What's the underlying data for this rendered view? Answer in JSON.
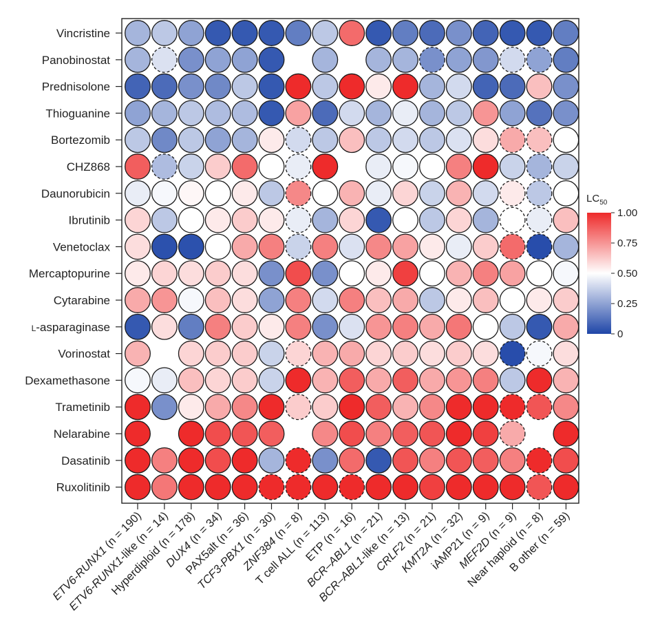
{
  "chart_data": {
    "type": "heatmap",
    "title": "",
    "legend": {
      "title": "LC",
      "title_subscript": "50",
      "tick_labels": [
        "1.00",
        "0.75",
        "0.50",
        "0.25",
        "0"
      ],
      "tick_values": [
        1.0,
        0.75,
        0.5,
        0.25,
        0
      ],
      "colors": {
        "low": "#1f46a8",
        "mid": "#ffffff",
        "high": "#ee2b2b"
      }
    },
    "drugs": [
      "Vincristine",
      "Panobinostat",
      "Prednisolone",
      "Thioguanine",
      "Bortezomib",
      "CHZ868",
      "Daunorubicin",
      "Ibrutinib",
      "Venetoclax",
      "Mercaptopurine",
      "Cytarabine",
      "L-asparaginase",
      "Vorinostat",
      "Dexamethasone",
      "Trametinib",
      "Nelarabine",
      "Dasatinib",
      "Ruxolitinib"
    ],
    "drug_labels": [
      {
        "prefix": "",
        "name": "Vincristine"
      },
      {
        "prefix": "",
        "name": "Panobinostat"
      },
      {
        "prefix": "",
        "name": "Prednisolone"
      },
      {
        "prefix": "",
        "name": "Thioguanine"
      },
      {
        "prefix": "",
        "name": "Bortezomib"
      },
      {
        "prefix": "",
        "name": "CHZ868"
      },
      {
        "prefix": "",
        "name": "Daunorubicin"
      },
      {
        "prefix": "",
        "name": "Ibrutinib"
      },
      {
        "prefix": "",
        "name": "Venetoclax"
      },
      {
        "prefix": "",
        "name": "Mercaptopurine"
      },
      {
        "prefix": "",
        "name": "Cytarabine"
      },
      {
        "prefix": "L",
        "name": "-asparaginase"
      },
      {
        "prefix": "",
        "name": "Vorinostat"
      },
      {
        "prefix": "",
        "name": "Dexamethasone"
      },
      {
        "prefix": "",
        "name": "Trametinib"
      },
      {
        "prefix": "",
        "name": "Nelarabine"
      },
      {
        "prefix": "",
        "name": "Dasatinib"
      },
      {
        "prefix": "",
        "name": "Ruxolitinib"
      }
    ],
    "subtypes": [
      {
        "name": "ETV6-RUNX1",
        "italic": true,
        "suffix": " (n = 190)"
      },
      {
        "name": "ETV6-RUNX1",
        "italic": true,
        "suffix": "-like (n = 14)"
      },
      {
        "name": "Hyperdiploid",
        "italic": false,
        "suffix": " (n = 178)"
      },
      {
        "name": "DUX4",
        "italic": true,
        "suffix": " (n = 34)"
      },
      {
        "name": "PAX5alt",
        "italic": false,
        "suffix": " (n = 36)"
      },
      {
        "name": "TCF3-PBX1",
        "italic": true,
        "suffix": " (n = 30)"
      },
      {
        "name": "ZNF384",
        "italic": true,
        "suffix": " (n = 8)"
      },
      {
        "name": "T cell ALL",
        "italic": false,
        "suffix": " (n = 113)"
      },
      {
        "name": "ETP",
        "italic": false,
        "suffix": " (n = 16)"
      },
      {
        "name": "BCR–ABL1",
        "italic": true,
        "suffix": " (n = 21)"
      },
      {
        "name": "BCR–ABL1",
        "italic": true,
        "suffix": "-like (n = 13)"
      },
      {
        "name": "CRLF2",
        "italic": true,
        "suffix": " (n = 21)"
      },
      {
        "name": "KMT2A",
        "italic": true,
        "suffix": " (n = 32)"
      },
      {
        "name": "iAMP21",
        "italic": false,
        "suffix": " (n = 9)"
      },
      {
        "name": "MEF2D",
        "italic": true,
        "suffix": " (n = 9)"
      },
      {
        "name": "Near haploid",
        "italic": false,
        "suffix": " (n = 8)"
      },
      {
        "name": "B other",
        "italic": false,
        "suffix": " (n = 59)"
      }
    ],
    "values": [
      [
        0.3,
        0.35,
        0.25,
        0.05,
        0.05,
        0.05,
        0.15,
        0.35,
        0.85,
        0.05,
        0.15,
        0.1,
        0.2,
        0.08,
        0.05,
        0.05,
        0.15
      ],
      [
        0.3,
        0.42,
        0.2,
        0.25,
        0.25,
        0.05,
        null,
        0.3,
        null,
        0.3,
        0.3,
        0.2,
        0.25,
        0.22,
        0.4,
        0.25,
        0.15
      ],
      [
        0.08,
        0.1,
        0.2,
        0.18,
        0.35,
        0.05,
        1.0,
        0.35,
        1.0,
        0.55,
        1.0,
        0.3,
        0.4,
        0.08,
        0.1,
        0.65,
        0.2
      ],
      [
        0.25,
        0.3,
        0.35,
        0.32,
        0.32,
        0.05,
        0.72,
        0.1,
        0.4,
        0.3,
        0.45,
        0.3,
        0.35,
        0.75,
        0.25,
        0.12,
        0.2
      ],
      [
        0.35,
        0.18,
        0.35,
        0.25,
        0.3,
        0.55,
        0.4,
        0.35,
        0.65,
        0.35,
        0.4,
        0.35,
        0.42,
        0.58,
        0.7,
        0.65,
        0.5
      ],
      [
        0.88,
        0.32,
        0.38,
        0.62,
        0.85,
        0.5,
        0.45,
        1.0,
        null,
        0.45,
        0.48,
        0.5,
        0.8,
        1.0,
        0.38,
        0.3,
        0.38
      ],
      [
        0.45,
        0.48,
        0.52,
        0.5,
        0.55,
        0.35,
        0.78,
        0.5,
        0.68,
        0.45,
        0.6,
        0.38,
        0.68,
        0.4,
        0.55,
        0.35,
        0.5
      ],
      [
        0.6,
        0.35,
        0.5,
        0.55,
        0.62,
        0.55,
        0.45,
        0.3,
        0.6,
        0.05,
        0.5,
        0.35,
        0.6,
        0.3,
        0.5,
        0.45,
        0.65
      ],
      [
        0.58,
        0.03,
        0.03,
        0.5,
        0.7,
        0.8,
        0.38,
        0.8,
        0.42,
        0.78,
        0.72,
        0.55,
        0.45,
        0.62,
        0.85,
        0.02,
        0.3
      ],
      [
        0.55,
        0.6,
        0.58,
        0.62,
        0.58,
        0.2,
        0.92,
        0.2,
        0.5,
        0.55,
        0.95,
        0.5,
        0.68,
        0.8,
        0.72,
        0.5,
        0.48
      ],
      [
        0.7,
        0.75,
        0.48,
        0.65,
        0.58,
        0.25,
        0.8,
        0.4,
        0.8,
        0.65,
        0.7,
        0.35,
        0.55,
        0.65,
        0.5,
        0.55,
        0.62
      ],
      [
        0.05,
        0.58,
        0.15,
        0.8,
        0.62,
        0.55,
        0.8,
        0.2,
        0.42,
        0.75,
        0.8,
        0.7,
        0.82,
        0.5,
        0.35,
        0.05,
        0.7
      ],
      [
        0.68,
        null,
        0.6,
        0.62,
        0.62,
        0.38,
        0.6,
        0.68,
        0.7,
        0.6,
        0.62,
        0.58,
        0.62,
        0.58,
        0.02,
        0.48,
        0.58
      ],
      [
        0.48,
        0.45,
        0.65,
        0.6,
        0.62,
        0.38,
        1.0,
        0.68,
        0.88,
        0.7,
        0.88,
        0.7,
        0.75,
        0.8,
        0.35,
        1.0,
        0.68
      ],
      [
        1.0,
        0.2,
        0.55,
        0.7,
        0.78,
        1.0,
        0.62,
        0.62,
        1.0,
        0.88,
        0.68,
        0.78,
        1.0,
        1.0,
        1.0,
        0.9,
        0.78
      ],
      [
        1.0,
        null,
        1.0,
        0.92,
        0.9,
        0.88,
        null,
        0.78,
        0.92,
        0.8,
        0.88,
        0.9,
        1.0,
        0.95,
        0.7,
        null,
        1.0
      ],
      [
        1.0,
        0.8,
        1.0,
        0.92,
        1.0,
        0.3,
        1.0,
        0.2,
        0.85,
        0.05,
        0.9,
        0.8,
        0.9,
        0.88,
        0.8,
        1.0,
        0.92
      ],
      [
        1.0,
        0.82,
        1.0,
        1.0,
        1.0,
        1.0,
        1.0,
        1.0,
        1.0,
        1.0,
        1.0,
        0.95,
        1.0,
        1.0,
        1.0,
        0.9,
        1.0
      ]
    ],
    "dashed_cells": [
      [
        1,
        1
      ],
      [
        1,
        11
      ],
      [
        1,
        14
      ],
      [
        1,
        15
      ],
      [
        4,
        6
      ],
      [
        4,
        14
      ],
      [
        4,
        15
      ],
      [
        5,
        6
      ],
      [
        5,
        1
      ],
      [
        5,
        15
      ],
      [
        6,
        6
      ],
      [
        6,
        14
      ],
      [
        6,
        15
      ],
      [
        7,
        6
      ],
      [
        7,
        14
      ],
      [
        7,
        15
      ],
      [
        8,
        6
      ],
      [
        8,
        14
      ],
      [
        8,
        15
      ],
      [
        12,
        6
      ],
      [
        12,
        14
      ],
      [
        12,
        15
      ],
      [
        14,
        6
      ],
      [
        14,
        14
      ],
      [
        14,
        15
      ],
      [
        15,
        14
      ],
      [
        16,
        6
      ],
      [
        16,
        15
      ],
      [
        17,
        5
      ],
      [
        17,
        6
      ],
      [
        17,
        8
      ],
      [
        17,
        15
      ]
    ]
  }
}
